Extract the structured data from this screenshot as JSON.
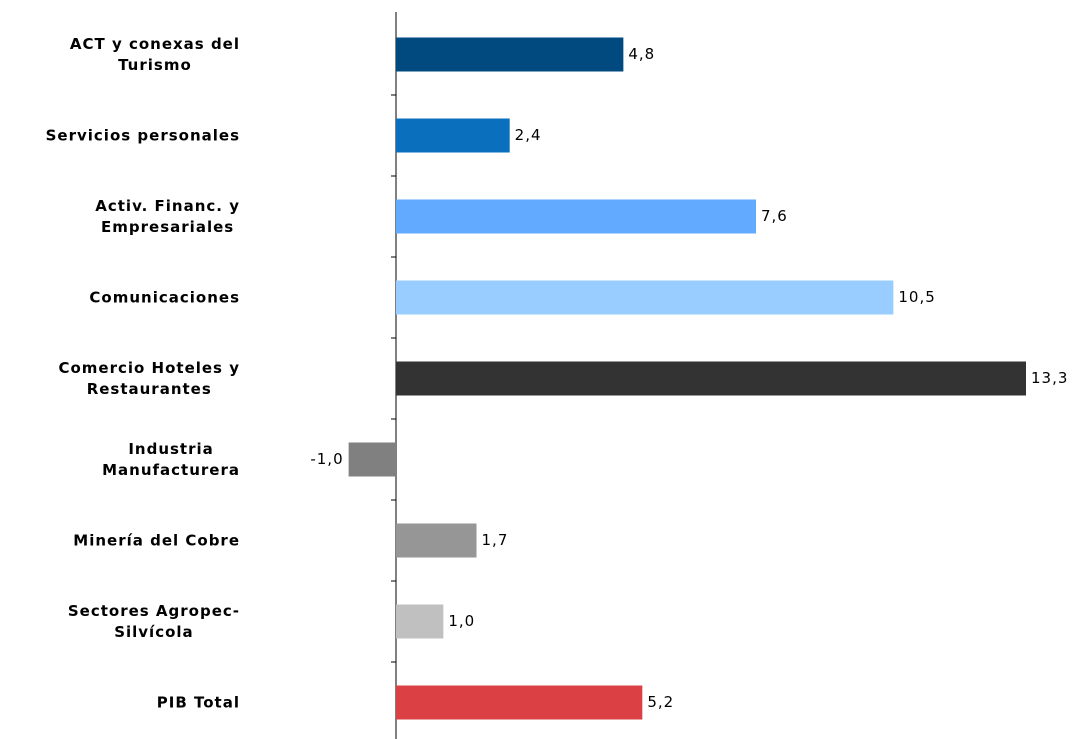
{
  "chart_data": {
    "type": "bar",
    "orientation": "horizontal",
    "categories": [
      "ACT y conexas del\nTurismo",
      "Servicios personales",
      "Activ. Financ. y\nEmpresariales",
      "Comunicaciones",
      "Comercio Hoteles y\nRestaurantes",
      "Industria\nManufacturera",
      "Minería del Cobre",
      "Sectores Agropec-\nSilvícola",
      "PIB Total"
    ],
    "values": [
      4.8,
      2.4,
      7.6,
      10.5,
      13.3,
      -1.0,
      1.7,
      1.0,
      5.2
    ],
    "value_labels": [
      "4,8",
      "2,4",
      "7,6",
      "10,5",
      "13,3",
      "-1,0",
      "1,7",
      "1,0",
      "5,2"
    ],
    "colors": [
      "#004a80",
      "#0a6fbd",
      "#62aaff",
      "#99ccff",
      "#333333",
      "#808080",
      "#969696",
      "#c0c0c0",
      "#da4044"
    ]
  }
}
